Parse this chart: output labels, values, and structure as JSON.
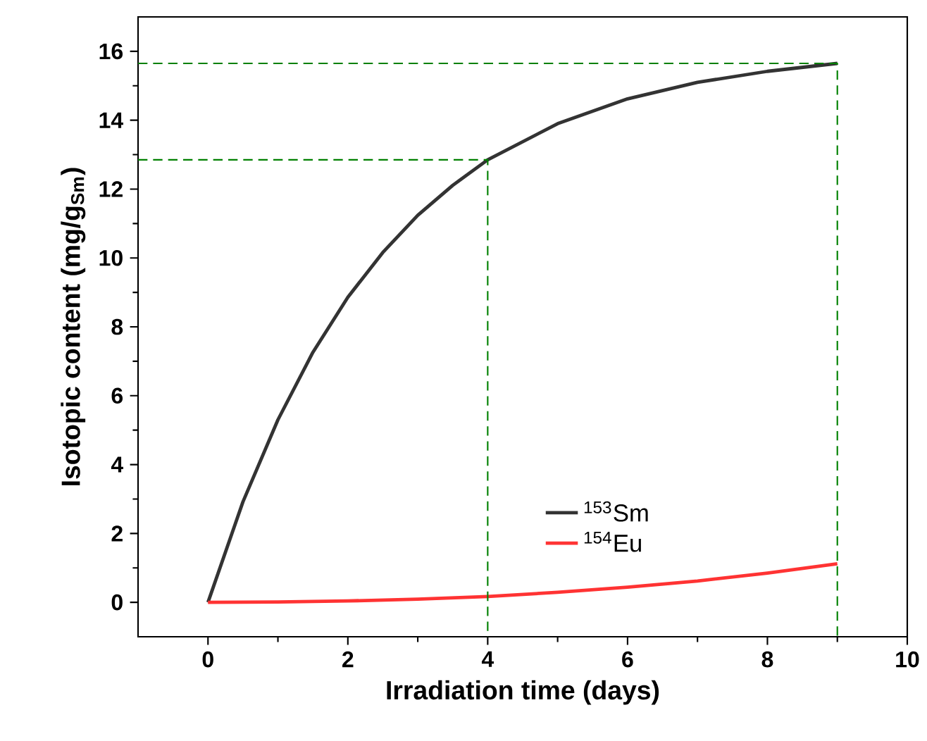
{
  "chart_data": {
    "type": "line",
    "xlabel": "Irradiation time (days)",
    "ylabel": "Isotopic content (mg/g$_{Sm}$)",
    "xlim": [
      -1,
      10
    ],
    "ylim": [
      -1,
      17
    ],
    "xticks": [
      0,
      2,
      4,
      6,
      8,
      10
    ],
    "yticks": [
      0,
      2,
      4,
      6,
      8,
      10,
      12,
      14,
      16
    ],
    "legend": "bottom",
    "grid": false,
    "series": [
      {
        "name": "$^{153}$Sm",
        "color": "#333333",
        "x": [
          0,
          0.5,
          1,
          1.5,
          2,
          2.5,
          3,
          3.5,
          4,
          5,
          6,
          7,
          8,
          9
        ],
        "values": [
          0,
          2.92,
          5.3,
          7.26,
          8.86,
          10.16,
          11.24,
          12.11,
          12.85,
          13.9,
          14.62,
          15.1,
          15.42,
          15.65
        ]
      },
      {
        "name": "$^{154}$Eu",
        "color": "#ff3333",
        "x": [
          0,
          1,
          2,
          3,
          4,
          5,
          6,
          7,
          8,
          9
        ],
        "values": [
          0,
          0.01,
          0.04,
          0.09,
          0.17,
          0.29,
          0.44,
          0.62,
          0.85,
          1.12
        ]
      },
      {
        "type": "line",
        "line_style": "dashed",
        "color": "#008000",
        "x": [
          -1,
          4,
          4
        ],
        "values": [
          12.85,
          12.85,
          -1
        ]
      },
      {
        "type": "line",
        "line_style": "dashed",
        "color": "#008000",
        "x": [
          -1,
          9,
          9
        ],
        "values": [
          15.65,
          15.65,
          -1
        ]
      }
    ]
  }
}
